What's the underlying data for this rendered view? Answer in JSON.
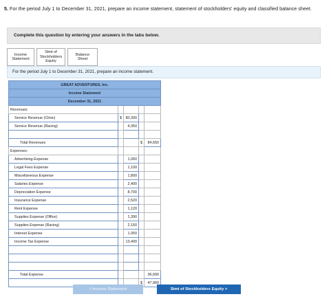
{
  "question": {
    "number": "5.",
    "text": "For the period July 1 to December 31, 2021, prepare an income statement, statement of stockholders' equity and classified balance sheet."
  },
  "instructions": "Complete this question by entering your answers in the tabs below.",
  "tabs": [
    {
      "label": "Income Statement"
    },
    {
      "label": "Stmt of Stockholders Equity"
    },
    {
      "label": "Balance Sheet"
    }
  ],
  "prompt": "For the period July 1 to December 31, 2021, prepare an income statement.",
  "statement": {
    "company": "GREAT ADVENTURES, Inc.",
    "title": "Income Statement",
    "date": "December 31, 2021",
    "revenues_label": "Revenues:",
    "revenues": [
      {
        "label": "Service Revenue (Clinic)",
        "currency": "$",
        "amount": "80,300"
      },
      {
        "label": "Service Revenue (Racing)",
        "currency": "",
        "amount": "4,350"
      }
    ],
    "total_revenues": {
      "label": "Total Revenues",
      "currency": "$",
      "amount": "84,650"
    },
    "expenses_label": "Expenses:",
    "expenses": [
      {
        "label": "Advertising Expense",
        "amount": "1,060"
      },
      {
        "label": "Legal Fees Expense",
        "amount": "1,100"
      },
      {
        "label": "Miscellaneous Expense",
        "amount": "1,800"
      },
      {
        "label": "Salaries Expense",
        "amount": "2,400"
      },
      {
        "label": "Depreciation Expense",
        "amount": "8,700"
      },
      {
        "label": "Insurance Expense",
        "amount": "2,520"
      },
      {
        "label": "Rent Expense",
        "amount": "1,120"
      },
      {
        "label": "Supplies Expense (Office)",
        "amount": "1,390"
      },
      {
        "label": "Supplies Expense (Racing)",
        "amount": "2,150"
      },
      {
        "label": "Interest Expense",
        "amount": "1,050"
      },
      {
        "label": "Income Tax Expense",
        "amount": "13,400"
      }
    ],
    "total_expense": {
      "label": "Total Expense",
      "amount": "36,690"
    },
    "net": {
      "currency": "$",
      "amount": "47,960"
    }
  },
  "nav": {
    "prev_label": "< Income Statement",
    "next_label": "Stmt of Stockholders Equity >"
  }
}
